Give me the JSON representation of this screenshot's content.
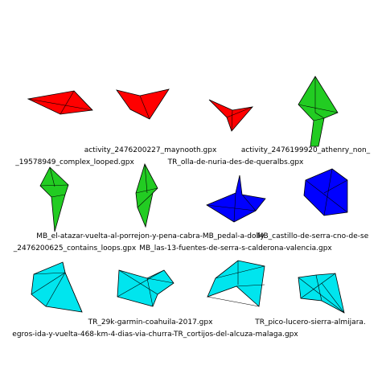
{
  "colors": {
    "red": "#ff0000",
    "green": "#22cc22",
    "blue": "#0000ff",
    "cyan": "#00e5ee",
    "edge": "#000000"
  },
  "shapes": [
    {
      "id": "red-1",
      "color": "red",
      "label_key": ""
    },
    {
      "id": "red-2",
      "color": "red",
      "label_key": "r1c2"
    },
    {
      "id": "red-3",
      "color": "red",
      "label_key": "r1c3"
    },
    {
      "id": "green-1",
      "color": "green",
      "label_key": "r1c4"
    },
    {
      "id": "green-2",
      "color": "green",
      "label_key": "r2c1"
    },
    {
      "id": "green-3",
      "color": "green",
      "label_key": "r2c2"
    },
    {
      "id": "blue-1",
      "color": "blue",
      "label_key": "r2c3"
    },
    {
      "id": "blue-2",
      "color": "blue",
      "label_key": "r2c4"
    },
    {
      "id": "cyan-1",
      "color": "cyan",
      "label_key": "r3c1"
    },
    {
      "id": "cyan-2",
      "color": "cyan",
      "label_key": "r3c2"
    },
    {
      "id": "cyan-3",
      "color": "cyan",
      "label_key": "r3c3"
    },
    {
      "id": "cyan-4",
      "color": "cyan",
      "label_key": "r3c4"
    }
  ],
  "labels": {
    "row1_a": "activity_2476200227_maynooth.gpx",
    "row1_b": "activity_2476199920_athenry_non_",
    "row1_c": "_19578949_complex_looped.gpx",
    "row1_d": "TR_olla-de-nuria-des-de-queralbs.gpx",
    "row2_a": "MB_el-atazar-vuelta-al-porrejon-y-pena-cabra-MB_pedal-a-dolly",
    "row2_b": "MB_castillo-de-serra-cno-de-se",
    "row2_c": "_2476200625_contains_loops.gpx",
    "row2_d": "MB_las-13-fuentes-de-serra-s-calderona-valencia.gpx",
    "row3_a": "TR_29k-garmin-coahuila-2017.gpx",
    "row3_b": "TR_pico-lucero-sierra-almijara.",
    "row3_c": "egros-ida-y-vuelta-468-km-4-dias-via-churra-TR_cortijos-del-alcuza-malaga.gpx"
  }
}
